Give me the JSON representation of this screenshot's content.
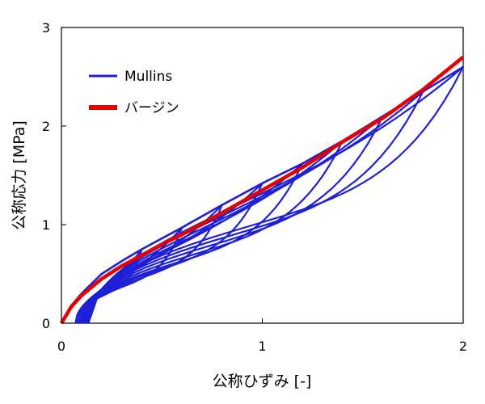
{
  "chart_data": {
    "type": "line",
    "xlabel": "公称ひずみ [-]",
    "ylabel": "公称応力 [MPa]",
    "xlim": [
      0,
      2
    ],
    "ylim": [
      0,
      3
    ],
    "x_ticks": [
      "0",
      "1",
      "2"
    ],
    "y_ticks": [
      "0",
      "1",
      "2",
      "3"
    ],
    "grid": false,
    "legend_position": "top-left",
    "series": [
      {
        "name": "Mullins",
        "color": "#1f1fd6",
        "x": [
          0,
          0.05,
          0.1,
          0.2,
          0.3,
          0.4,
          0.6,
          0.8,
          1.0,
          1.2,
          1.4,
          1.6,
          1.8,
          2.0
        ],
        "y": [
          0,
          0.18,
          0.3,
          0.5,
          0.63,
          0.75,
          0.97,
          1.2,
          1.42,
          1.62,
          1.85,
          2.1,
          2.35,
          2.6
        ]
      },
      {
        "name": "バージン",
        "color": "#e60000",
        "x": [
          0,
          0.05,
          0.1,
          0.2,
          0.3,
          0.4,
          0.5,
          0.6,
          0.8,
          1.0,
          1.2,
          1.4,
          1.6,
          1.8,
          2.0
        ],
        "y": [
          0,
          0.17,
          0.28,
          0.45,
          0.58,
          0.69,
          0.8,
          0.9,
          1.12,
          1.35,
          1.58,
          1.84,
          2.08,
          2.37,
          2.7
        ]
      }
    ]
  }
}
